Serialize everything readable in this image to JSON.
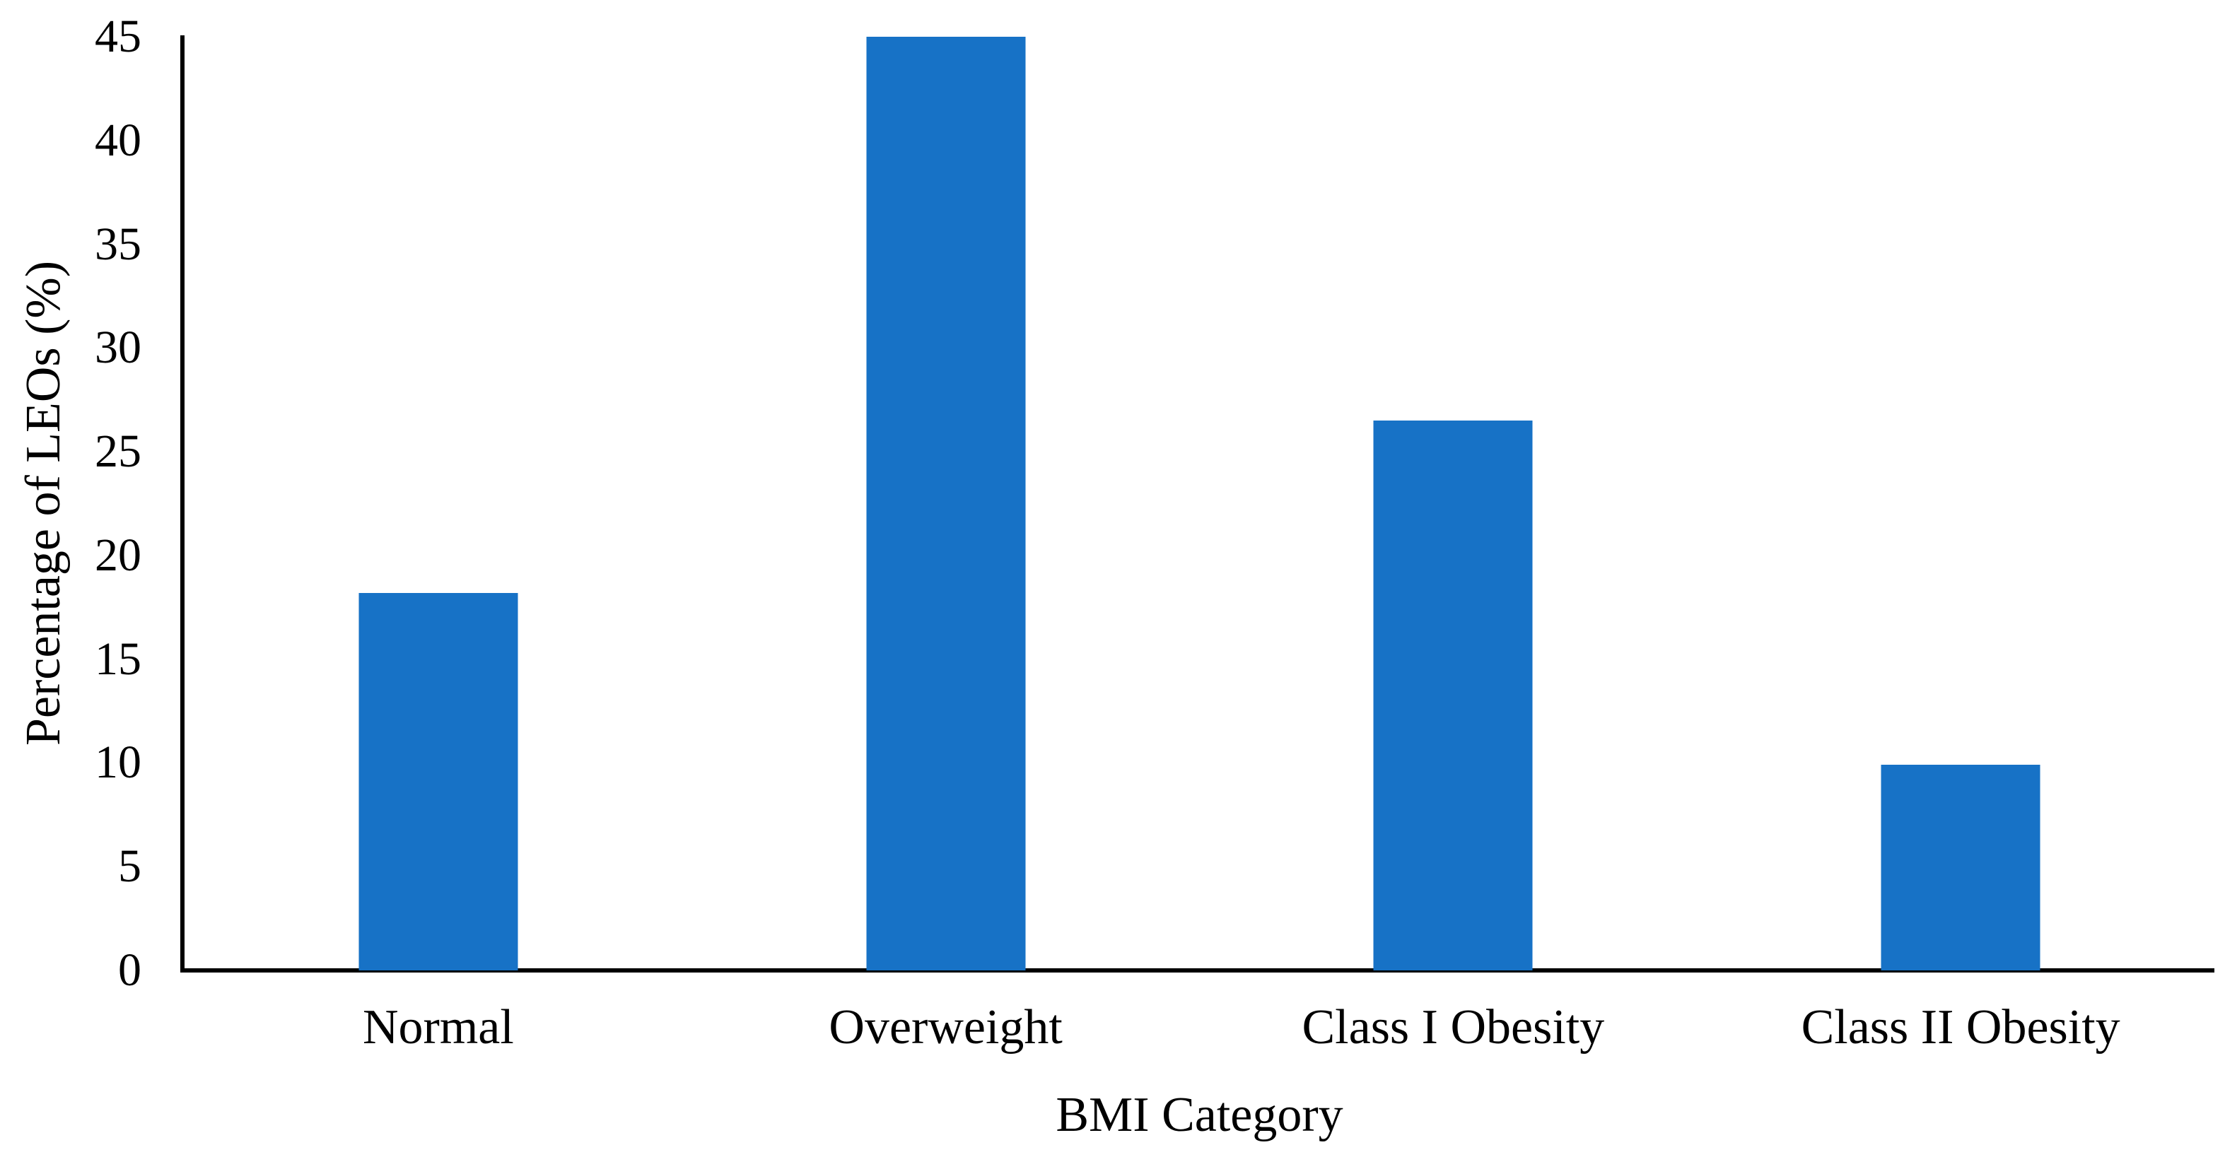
{
  "figure": {
    "background": "#ffffff"
  },
  "chart_data": {
    "type": "bar",
    "title": "",
    "categories": [
      "Normal",
      "Overweight",
      "Class I Obesity",
      "Class II Obesity"
    ],
    "values": [
      18.2,
      45.0,
      26.5,
      9.9
    ],
    "xlabel": "BMI Category",
    "ylabel": "Percentage of LEOs (%)",
    "ylim": [
      0,
      45
    ],
    "yticks": [
      0,
      5,
      10,
      15,
      20,
      25,
      30,
      35,
      40,
      45
    ],
    "grid": false,
    "legend": "none",
    "bar_color": "#1772C6",
    "axis_color": "#000000"
  }
}
